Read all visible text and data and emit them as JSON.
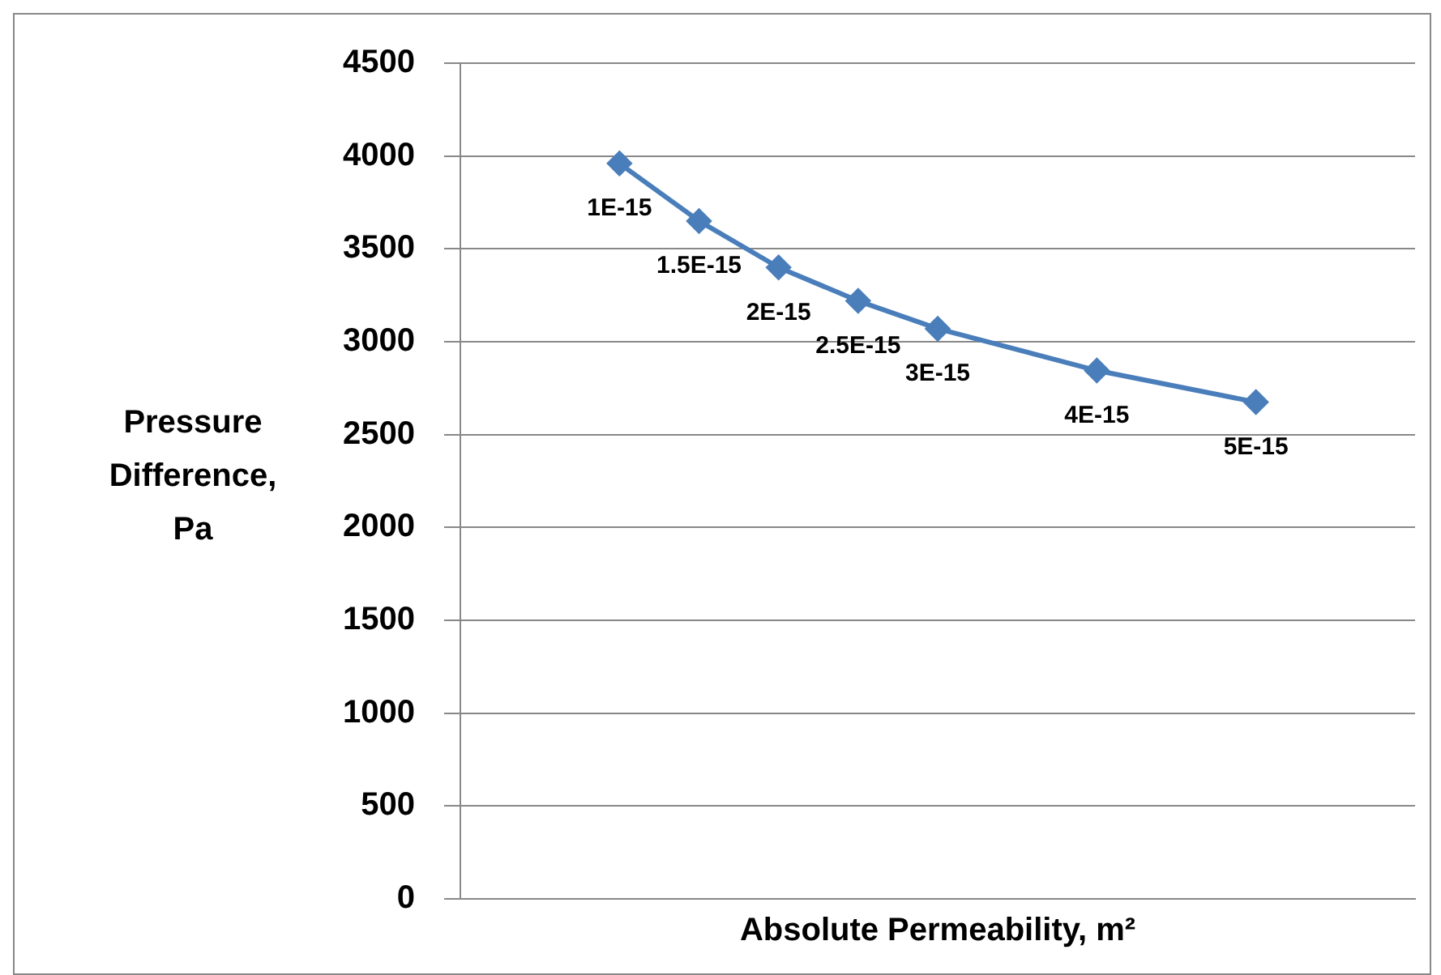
{
  "chart_data": {
    "type": "line",
    "xlabel": "Absolute Permeability, m²",
    "ylabel": "Pressure Difference, Pa",
    "categories": [
      null,
      null,
      null,
      null,
      null,
      null,
      null,
      null,
      null,
      null,
      null,
      null,
      null
    ],
    "series": [
      {
        "color": "#4a7ebb",
        "values": [
          null,
          null,
          3960,
          3650,
          3400,
          3220,
          3070,
          null,
          2845,
          null,
          2675,
          null,
          null
        ]
      }
    ],
    "ylim": [
      0,
      4500
    ],
    "yticks": [
      0,
      500,
      1000,
      1500,
      2000,
      2500,
      3000,
      3500,
      4000,
      4500
    ],
    "grid": "y",
    "tick_labels": "y",
    "marker": "diamond",
    "line_style": "solid",
    "annotations": [
      {
        "text": "1E-15",
        "y": 3960
      },
      {
        "text": "1.5E-15",
        "y": 3650
      },
      {
        "text": "2E-15",
        "y": 3400
      },
      {
        "text": "2.5E-15",
        "y": 3220
      },
      {
        "text": "3E-15",
        "y": 3070
      },
      {
        "text": "4E-15",
        "y": 2845
      },
      {
        "text": "5E-15",
        "y": 2675
      }
    ]
  }
}
